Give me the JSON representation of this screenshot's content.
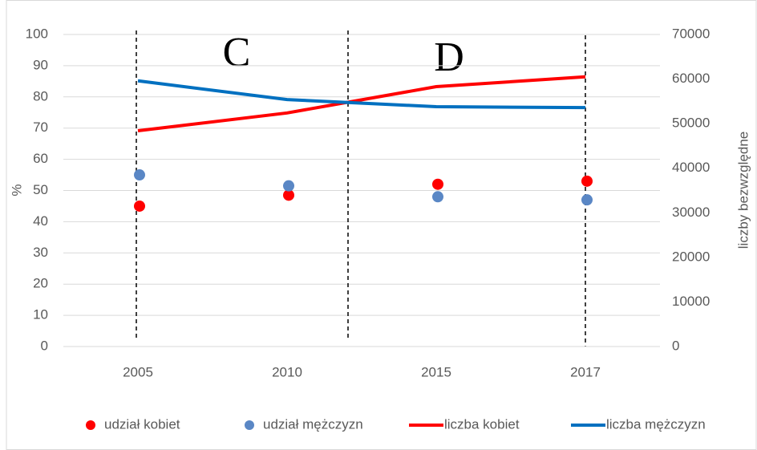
{
  "chart_data": {
    "type": "combo",
    "categories": [
      "2005",
      "2010",
      "2015",
      "2017"
    ],
    "ylabel": "%",
    "y2label": "liczby bezwzględne",
    "ylim": [
      0,
      100
    ],
    "yticks": [
      0,
      10,
      20,
      30,
      40,
      50,
      60,
      70,
      80,
      90,
      100
    ],
    "y2lim": [
      0,
      70000
    ],
    "y2ticks": [
      0,
      10000,
      20000,
      30000,
      40000,
      50000,
      60000,
      70000
    ],
    "grid": true,
    "legend": "bottom",
    "annotations": [
      "C",
      "D"
    ],
    "series": [
      {
        "name": "udział kobiet",
        "type": "scatter",
        "color": "#ff0000",
        "values": [
          45,
          48.5,
          52,
          53
        ]
      },
      {
        "name": "udział mężczyzn",
        "type": "scatter",
        "color": "#5a87c5",
        "values": [
          55,
          51.5,
          48,
          47
        ]
      },
      {
        "name": "liczba kobiet",
        "type": "line",
        "axis": "y2",
        "color": "#ff0000",
        "values": [
          48400,
          52400,
          58300,
          60500
        ]
      },
      {
        "name": "liczba mężczyzn",
        "type": "line",
        "axis": "y2",
        "color": "#0070c0",
        "values": [
          59600,
          55400,
          53800,
          53600
        ]
      }
    ]
  }
}
